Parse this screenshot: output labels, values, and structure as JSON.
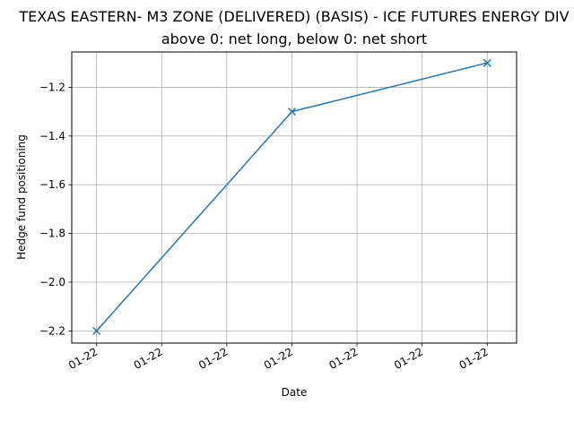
{
  "chart_data": {
    "type": "line",
    "title": "TEXAS EASTERN- M3 ZONE (DELIVERED) (BASIS) - ICE FUTURES ENERGY DIV",
    "subtitle": "above 0: net long, below 0: net short",
    "xlabel": "Date",
    "ylabel": "Hedge fund positioning",
    "x_tick_labels": [
      "01-22",
      "01-22",
      "01-22",
      "01-22",
      "01-22",
      "01-22",
      "01-22"
    ],
    "y_ticks": [
      -2.2,
      -2.0,
      -1.8,
      -1.6,
      -1.4,
      -1.2
    ],
    "y_tick_labels": [
      "−2.2",
      "−2.0",
      "−1.8",
      "−1.6",
      "−1.4",
      "−1.2"
    ],
    "ylim": [
      -2.25,
      -1.055
    ],
    "grid": true,
    "marker": "x",
    "color": "#1f77b4",
    "series": [
      {
        "points": [
          {
            "x": "2022-01-04",
            "y": -2.2
          },
          {
            "x": "2022-01-11",
            "y": -1.3
          },
          {
            "x": "2022-01-18",
            "y": -1.1
          }
        ]
      }
    ]
  }
}
